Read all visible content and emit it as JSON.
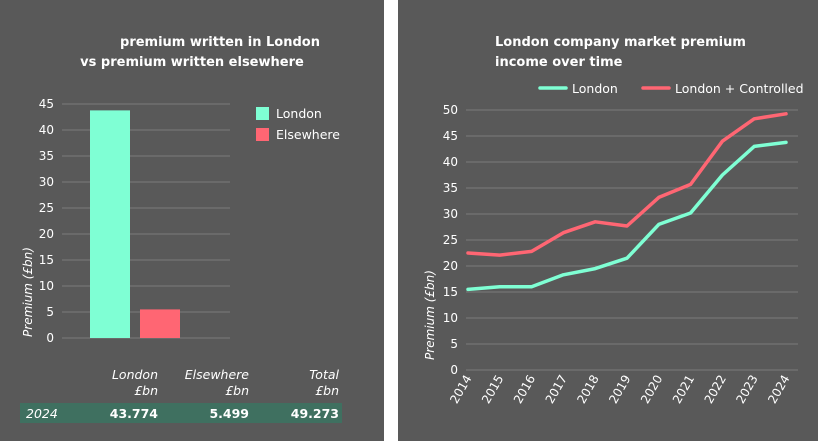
{
  "chart_data": [
    {
      "type": "bar",
      "title": [
        "premium written in London",
        "vs premium written elsewhere"
      ],
      "ylabel": "Premium (£bn)",
      "ylim": [
        0,
        45
      ],
      "yticks": [
        0,
        5,
        10,
        15,
        20,
        25,
        30,
        35,
        40,
        45
      ],
      "categories": [
        "London",
        "Elsewhere"
      ],
      "values": [
        43.774,
        5.499
      ],
      "colors": [
        "#7fffd4",
        "#ff6673"
      ],
      "legend": [
        {
          "label": "London",
          "color": "#7fffd4"
        },
        {
          "label": "Elsewhere",
          "color": "#ff6673"
        }
      ],
      "legend_position": "top-right",
      "table": {
        "headers": [
          [
            "London",
            "£bn"
          ],
          [
            "Elsewhere",
            "£bn"
          ],
          [
            "Total",
            "£bn"
          ]
        ],
        "rows": [
          {
            "year": "2024",
            "values": [
              "43.774",
              "5.499",
              "49.273"
            ]
          }
        ],
        "row_color": "#3f7060"
      }
    },
    {
      "type": "line",
      "title": [
        "London company market premium",
        "income over time"
      ],
      "ylabel": "Premium (£bn)",
      "ylim": [
        0,
        50
      ],
      "yticks": [
        0,
        5,
        10,
        15,
        20,
        25,
        30,
        35,
        40,
        45,
        50
      ],
      "x": [
        "2014",
        "2015",
        "2016",
        "2017",
        "2018",
        "2019",
        "2020",
        "2021",
        "2022",
        "2023",
        "2024"
      ],
      "series": [
        {
          "name": "London",
          "color": "#7fffd4",
          "values": [
            15.5,
            16.0,
            16.0,
            18.3,
            19.5,
            21.5,
            28.0,
            30.2,
            37.5,
            43.0,
            43.774
          ]
        },
        {
          "name": "London + Controlled",
          "color": "#ff6673",
          "values": [
            22.5,
            22.1,
            22.8,
            26.4,
            28.5,
            27.7,
            33.2,
            35.7,
            44.0,
            48.3,
            49.273
          ]
        }
      ],
      "legend_position": "top"
    }
  ]
}
